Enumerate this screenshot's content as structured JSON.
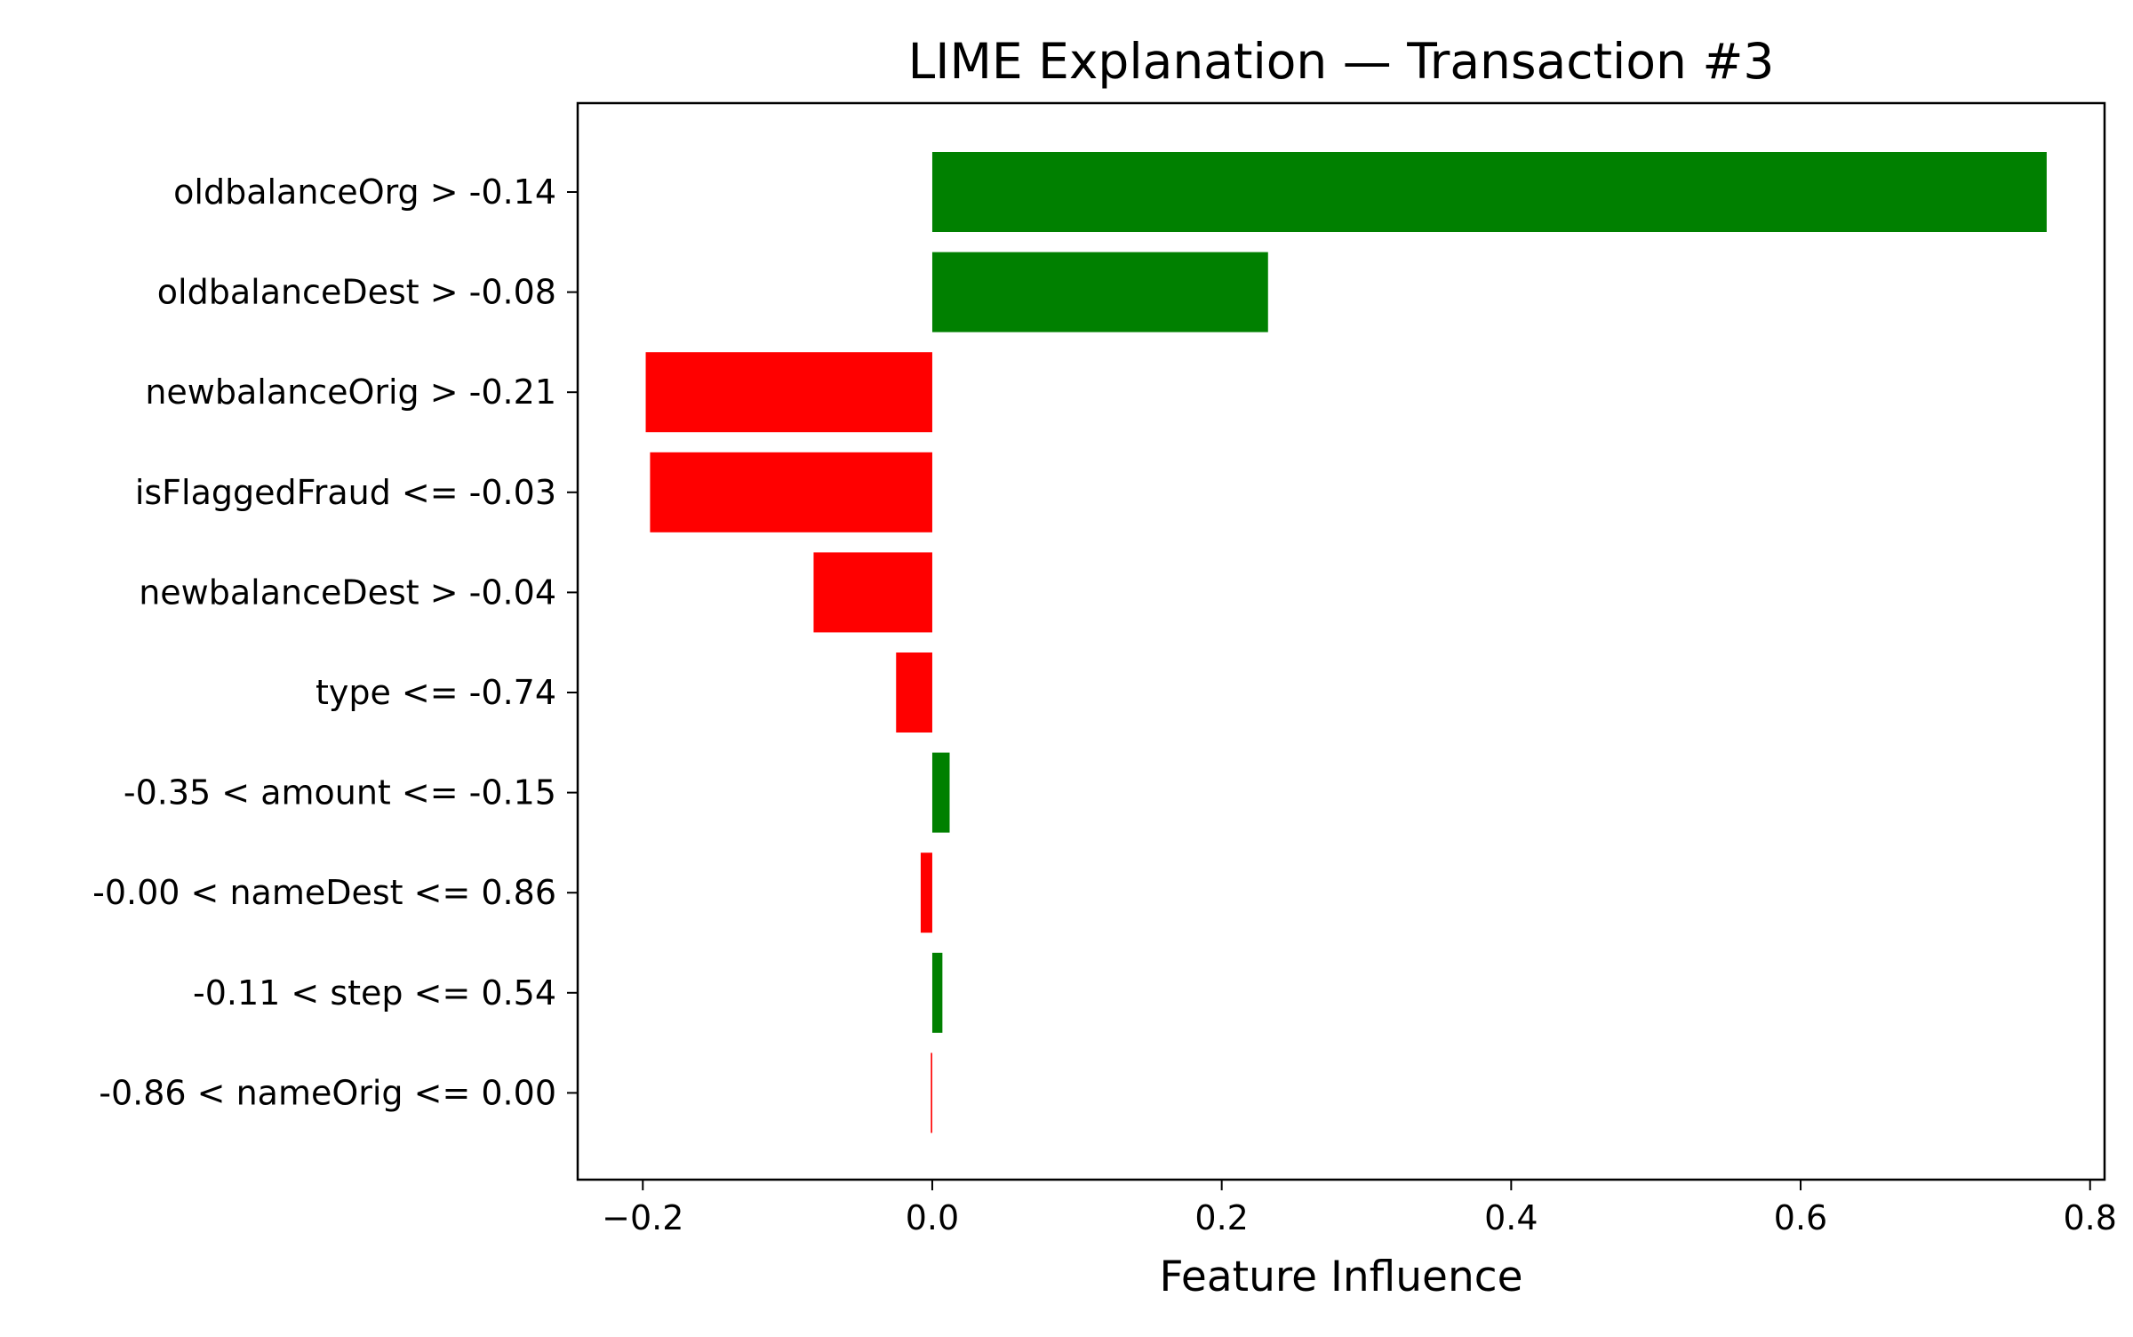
{
  "chart_data": {
    "type": "bar",
    "orientation": "horizontal",
    "title": "LIME Explanation — Transaction #3",
    "xlabel": "Feature Influence",
    "ylabel": "",
    "xlim": [
      -0.245,
      0.81
    ],
    "xticks": [
      -0.2,
      0.0,
      0.2,
      0.4,
      0.6,
      0.8
    ],
    "xtick_labels": [
      "−0.2",
      "0.0",
      "0.2",
      "0.4",
      "0.6",
      "0.8"
    ],
    "grid": false,
    "legend": "none",
    "colors": {
      "positive": "#008000",
      "negative": "#ff0000"
    },
    "categories": [
      "oldbalanceOrg > -0.14",
      "oldbalanceDest > -0.08",
      "newbalanceOrig > -0.21",
      "isFlaggedFraud <= -0.03",
      "newbalanceDest > -0.04",
      "type <= -0.74",
      "-0.35 < amount <= -0.15",
      "-0.00 < nameDest <= 0.86",
      "-0.11 < step <= 0.54",
      "-0.86 < nameOrig <= 0.00"
    ],
    "values": [
      0.77,
      0.232,
      -0.198,
      -0.195,
      -0.082,
      -0.025,
      0.012,
      -0.008,
      0.007,
      -0.001
    ]
  }
}
